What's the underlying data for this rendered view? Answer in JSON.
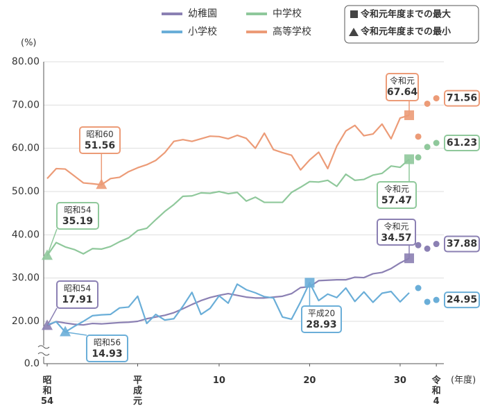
{
  "chart_data": {
    "type": "line",
    "y_unit": "(%)",
    "x_unit": "(年度)",
    "axis_break": true,
    "grid": true,
    "categories": [
      "昭和54",
      null,
      null,
      null,
      null,
      null,
      null,
      null,
      null,
      null,
      "平成元",
      null,
      null,
      null,
      null,
      null,
      null,
      null,
      null,
      "10",
      null,
      null,
      null,
      null,
      null,
      null,
      null,
      null,
      null,
      "20",
      null,
      null,
      null,
      null,
      null,
      null,
      null,
      null,
      null,
      "30",
      null,
      null,
      null,
      "令和4"
    ],
    "ylim": [
      0,
      80
    ],
    "yticks": [
      {
        "value": 0,
        "label": "0.0"
      },
      {
        "value": 20,
        "label": "20.00"
      },
      {
        "value": 30,
        "label": "30.00"
      },
      {
        "value": 40,
        "label": "40.00"
      },
      {
        "value": 50,
        "label": "50.00"
      },
      {
        "value": 60,
        "label": "60.00"
      },
      {
        "value": 70,
        "label": "70.00"
      },
      {
        "value": 80,
        "label": "80.00"
      }
    ],
    "series": [
      {
        "name": "幼稚園",
        "color": "#8b80b3",
        "values": [
          17.91,
          19.9,
          19.2,
          18.6,
          18.3,
          19.0,
          18.8,
          19.1,
          19.4,
          19.6,
          20.0,
          20.6,
          21.0,
          21.4,
          22.0,
          22.9,
          23.9,
          24.8,
          25.5,
          26.0,
          26.4,
          26.0,
          25.6,
          25.4,
          25.4,
          25.6,
          25.8,
          26.4,
          27.8,
          28.0,
          29.4,
          29.5,
          29.6,
          29.6,
          30.2,
          30.1,
          31.0,
          31.3,
          32.2,
          33.5,
          34.57,
          37.6,
          36.8,
          37.88
        ]
      },
      {
        "name": "小学校",
        "color": "#6aaed8",
        "values": [
          18.4,
          19.8,
          14.93,
          17.6,
          20.0,
          21.3,
          21.5,
          21.6,
          23.1,
          23.3,
          25.8,
          19.0,
          21.6,
          20.3,
          20.6,
          23.5,
          26.7,
          21.6,
          23.0,
          25.9,
          24.2,
          28.6,
          27.3,
          26.6,
          25.7,
          25.4,
          21.0,
          20.5,
          24.5,
          28.93,
          24.8,
          26.3,
          25.5,
          27.7,
          24.6,
          26.8,
          24.4,
          26.5,
          26.9,
          24.5,
          26.6,
          27.7,
          24.5,
          24.95
        ]
      },
      {
        "name": "中学校",
        "color": "#8fc89b",
        "values": [
          35.19,
          38.2,
          37.2,
          36.6,
          35.6,
          36.8,
          36.7,
          37.3,
          38.4,
          39.3,
          41.0,
          41.5,
          43.5,
          45.4,
          47.0,
          48.9,
          49.0,
          49.7,
          49.6,
          50.0,
          49.5,
          49.8,
          47.8,
          48.7,
          47.5,
          47.5,
          47.5,
          49.8,
          51.0,
          52.3,
          52.2,
          52.6,
          51.2,
          54.0,
          52.6,
          52.8,
          53.8,
          54.2,
          55.9,
          55.6,
          57.47,
          57.9,
          60.3,
          61.23
        ]
      },
      {
        "name": "高等学校",
        "color": "#ec9b77",
        "values": [
          53.0,
          55.3,
          55.2,
          53.6,
          52.0,
          51.8,
          51.56,
          53.0,
          53.3,
          54.6,
          55.5,
          56.2,
          57.2,
          59.0,
          61.6,
          62.0,
          61.6,
          62.2,
          62.8,
          62.7,
          62.2,
          63.0,
          62.3,
          60.0,
          63.5,
          59.7,
          59.0,
          58.4,
          55.0,
          57.3,
          59.1,
          55.3,
          60.5,
          64.0,
          65.3,
          62.9,
          63.3,
          65.6,
          62.2,
          67.0,
          67.64,
          62.7,
          70.3,
          71.56
        ]
      }
    ],
    "legend_notes": [
      "令和元年度までの最大",
      "令和元年度までの最小"
    ],
    "annotations": [
      {
        "label": "令和元"
      },
      {
        "label": "昭和60"
      },
      {
        "label": "昭和54"
      },
      {
        "label": "令和元"
      },
      {
        "label": "令和元"
      },
      {
        "label": "昭和54"
      },
      {
        "label": "昭和56"
      },
      {
        "label": "平成20"
      }
    ]
  }
}
